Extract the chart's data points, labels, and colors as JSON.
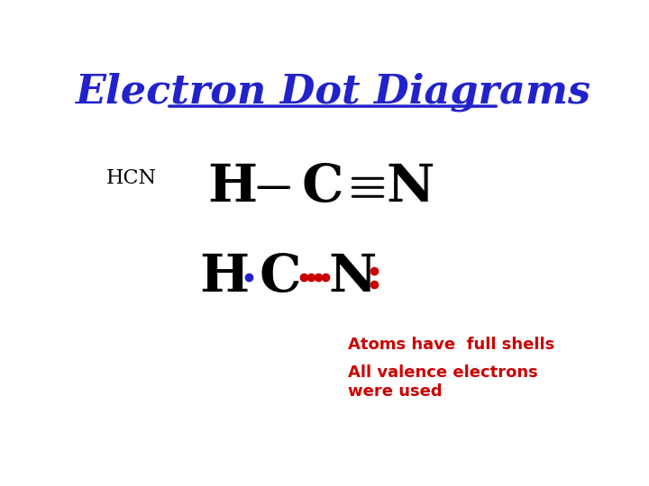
{
  "title": "Electron Dot Diagrams",
  "title_color": "#2222cc",
  "title_fontsize": 32,
  "background_color": "#ffffff",
  "hcn_label": "HCN",
  "hcn_label_fontsize": 16,
  "structural_fontsize": 42,
  "dot_fontsize": 42,
  "annotation1": "Atoms have  full shells",
  "annotation2": "All valence electrons\nwere used",
  "annotation_color": "#cc0000",
  "annotation_fontsize": 13,
  "blue_dot_color": "#2222cc",
  "red_dot_color": "#cc0000"
}
